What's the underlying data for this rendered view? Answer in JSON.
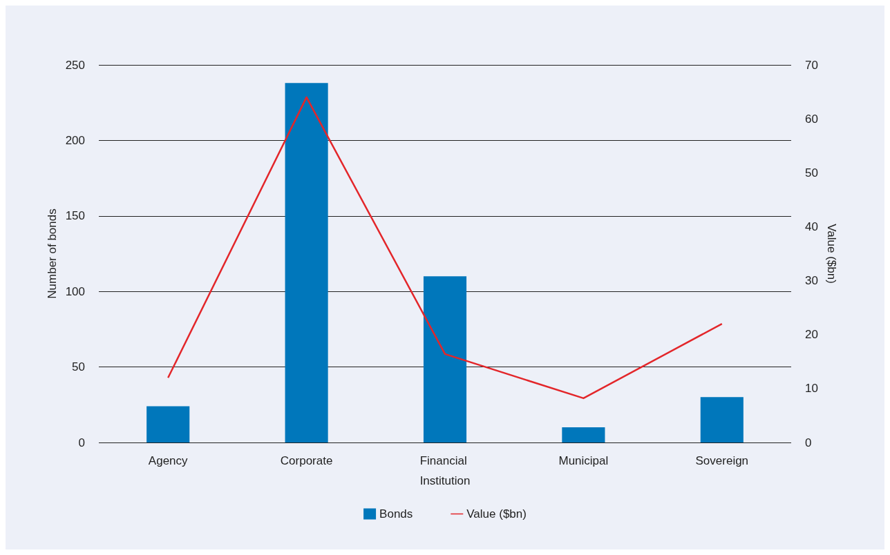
{
  "chart_data": {
    "type": "bar",
    "ylabel": "Number of bonds",
    "y2label": "Value ($bn)",
    "categories": [
      "Agency",
      "Corporate",
      "Financial Institution",
      "Municipal",
      "Sovereign"
    ],
    "series": [
      {
        "name": "Bonds",
        "color": "#0077bb",
        "values": [
          24,
          238,
          110,
          10,
          30
        ]
      },
      {
        "name": "Value ($bn)",
        "type": "line",
        "axis": "y2",
        "color": "#e3262a",
        "values": [
          12,
          64,
          16.4,
          8.2,
          22
        ]
      }
    ],
    "ylim": [
      0,
      250
    ],
    "yticks": [
      0,
      50,
      100,
      150,
      200,
      250
    ],
    "y2lim": [
      0,
      70
    ],
    "y2ticks": [
      0,
      10,
      20,
      30,
      40,
      50,
      60,
      70
    ],
    "grid": "y",
    "legend": "bottom",
    "marker": "none"
  }
}
